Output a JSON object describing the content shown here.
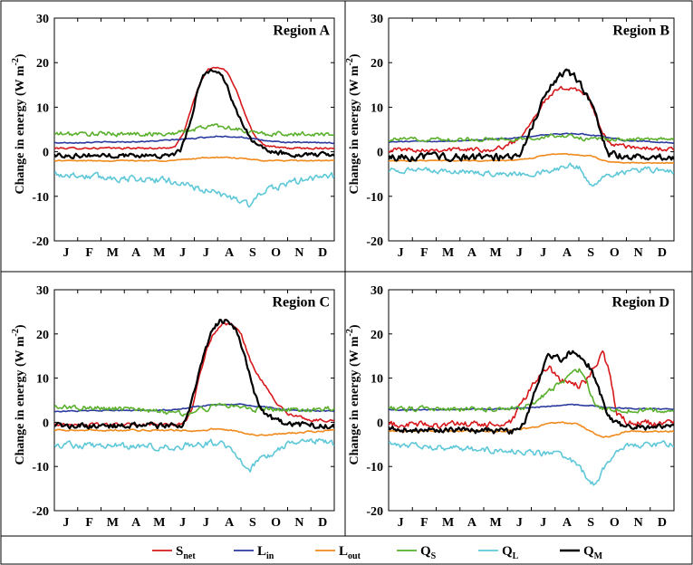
{
  "chart_data": {
    "type": "line",
    "ylabel": "Change in energy (W m",
    "ylabel_sup": "-2",
    "ylabel_close": ")",
    "months": [
      "J",
      "F",
      "M",
      "A",
      "M",
      "J",
      "J",
      "A",
      "S",
      "O",
      "N",
      "D"
    ],
    "yticks": [
      "30",
      "20",
      "10",
      "0",
      "-10",
      "-20"
    ],
    "ylim": [
      -20,
      30
    ],
    "xlim": [
      0,
      12
    ],
    "legend": [
      {
        "key": "Snet",
        "main": "S",
        "sub": "net",
        "color": "#d7191c"
      },
      {
        "key": "Lin",
        "main": "L",
        "sub": "in",
        "color": "#2b3a9e"
      },
      {
        "key": "Lout",
        "main": "L",
        "sub": "out",
        "color": "#f08a1c"
      },
      {
        "key": "QS",
        "main": "Q",
        "sub": "S",
        "color": "#5ab02c"
      },
      {
        "key": "QL",
        "main": "Q",
        "sub": "L",
        "color": "#5ec8d8"
      },
      {
        "key": "QM",
        "main": "Q",
        "sub": "M",
        "color": "#000000"
      }
    ],
    "panels": [
      {
        "title": "Region A",
        "series": {
          "Snet": {
            "x": [
              0,
              4.8,
              5.2,
              5.6,
              6.0,
              6.3,
              6.6,
              7.0,
              7.4,
              7.8,
              8.2,
              8.6,
              9.0,
              9.5,
              10,
              12
            ],
            "y": [
              0.8,
              0.8,
              1.2,
              5,
              12,
              16,
              18.5,
              19,
              18,
              14,
              8,
              3.5,
              1.5,
              1,
              0.8,
              0.8
            ],
            "noise": 0.3
          },
          "Lin": {
            "x": [
              0,
              4,
              6,
              7,
              8,
              9,
              10,
              12
            ],
            "y": [
              2,
              2.3,
              3,
              3.5,
              3.3,
              2.5,
              2.1,
              2
            ],
            "noise": 0.2
          },
          "Lout": {
            "x": [
              0,
              5,
              6.5,
              7.5,
              9,
              12
            ],
            "y": [
              -2,
              -2,
              -1.3,
              -1.3,
              -2,
              -2
            ],
            "noise": 0.2
          },
          "QS": {
            "x": [
              0,
              5,
              6,
              6.8,
              7.5,
              8.2,
              9,
              12
            ],
            "y": [
              4,
              4,
              5,
              6,
              5.5,
              4.5,
              4,
              4
            ],
            "noise": 0.8
          },
          "QL": {
            "x": [
              0,
              3,
              5,
              6,
              7,
              7.5,
              8,
              8.3,
              9,
              10,
              11,
              12
            ],
            "y": [
              -5,
              -6,
              -6.5,
              -8,
              -9.5,
              -10,
              -11,
              -12,
              -9,
              -7,
              -6,
              -5.5
            ],
            "noise": 1.2
          },
          "QM": {
            "x": [
              0,
              5,
              5.4,
              5.8,
              6.1,
              6.4,
              6.7,
              7.0,
              7.3,
              7.6,
              8.0,
              8.4,
              8.8,
              9.2,
              10,
              12
            ],
            "y": [
              -0.8,
              -0.8,
              0,
              6,
              13,
              17,
              18.5,
              18,
              16,
              12,
              7,
              3,
              1,
              0,
              -0.5,
              -0.8
            ],
            "noise": 0.8
          }
        }
      },
      {
        "title": "Region B",
        "series": {
          "Snet": {
            "x": [
              0,
              4.5,
              5,
              5.5,
              6,
              6.5,
              7,
              7.5,
              8,
              8.4,
              8.8,
              9.2,
              10,
              12
            ],
            "y": [
              0.5,
              0.5,
              1.5,
              3,
              7,
              11,
              13.5,
              14.5,
              14,
              12,
              7,
              2,
              1,
              0.5
            ],
            "noise": 0.8
          },
          "Lin": {
            "x": [
              0,
              3,
              5,
              6,
              7,
              8,
              9,
              10,
              12
            ],
            "y": [
              2.2,
              2.5,
              3,
              3.5,
              4,
              4,
              3.5,
              2.5,
              2
            ],
            "noise": 0.2
          },
          "Lout": {
            "x": [
              0,
              5,
              6,
              6.7,
              7.5,
              8.5,
              9.2,
              10,
              12
            ],
            "y": [
              -2,
              -2,
              -1.5,
              -0.6,
              -0.5,
              -1,
              -2.2,
              -2.5,
              -2.5
            ],
            "noise": 0.2
          },
          "QS": {
            "x": [
              0,
              5,
              6,
              6.8,
              7.5,
              8.2,
              9,
              12
            ],
            "y": [
              2.8,
              2.8,
              3,
              3.5,
              3.5,
              3,
              2.8,
              2.8
            ],
            "noise": 0.7
          },
          "QL": {
            "x": [
              0,
              3,
              5,
              6,
              7,
              7.5,
              8,
              8.3,
              8.6,
              9,
              10,
              11,
              12
            ],
            "y": [
              -4,
              -4.5,
              -5,
              -5,
              -4,
              -3,
              -3.5,
              -6,
              -8,
              -5.5,
              -4.5,
              -4,
              -4.5
            ],
            "noise": 0.9
          },
          "QM": {
            "x": [
              0,
              5,
              5.5,
              5.9,
              6.3,
              6.6,
              7.0,
              7.4,
              7.8,
              8.2,
              8.6,
              9.0,
              9.3,
              10,
              12
            ],
            "y": [
              -1.2,
              -1.2,
              -0.5,
              4,
              9,
              13,
              16,
              18,
              17,
              14,
              10,
              3,
              -0.5,
              -1,
              -1.2
            ],
            "noise": 1.2
          }
        }
      },
      {
        "title": "Region C",
        "series": {
          "Snet": {
            "x": [
              0,
              5.3,
              5.6,
              5.9,
              6.2,
              6.5,
              6.8,
              7.2,
              7.6,
              8.0,
              8.4,
              8.8,
              9.2,
              9.6,
              10,
              11,
              12
            ],
            "y": [
              -0.5,
              -0.5,
              0,
              3,
              10,
              16,
              20,
              22,
              22,
              20,
              14,
              10,
              7,
              4,
              2,
              0.5,
              0.5
            ],
            "noise": 0.5
          },
          "Lin": {
            "x": [
              0,
              5,
              6,
              7,
              8,
              9,
              10,
              12
            ],
            "y": [
              2.5,
              2.8,
              3.5,
              4,
              4,
              3.5,
              2.8,
              2.5
            ],
            "noise": 0.2
          },
          "Lout": {
            "x": [
              0,
              5.5,
              6.2,
              6.8,
              7.5,
              8.3,
              9,
              10,
              12
            ],
            "y": [
              -1.8,
              -1.8,
              -2,
              -1.5,
              -1.8,
              -2.5,
              -3,
              -2.5,
              -1.8
            ],
            "noise": 0.3
          },
          "QS": {
            "x": [
              0,
              3,
              5.5,
              6.5,
              7,
              7.5,
              8.5,
              12
            ],
            "y": [
              3.5,
              3,
              2,
              3,
              4,
              4,
              3,
              3
            ],
            "noise": 0.9
          },
          "QL": {
            "x": [
              0,
              3,
              5,
              6,
              7,
              7.5,
              8,
              8.4,
              9,
              10,
              11,
              12
            ],
            "y": [
              -5,
              -5.5,
              -5.5,
              -5,
              -4.5,
              -6,
              -9,
              -10.5,
              -8,
              -5,
              -4,
              -5
            ],
            "noise": 1.2
          },
          "QM": {
            "x": [
              0,
              5.3,
              5.6,
              5.9,
              6.2,
              6.5,
              6.8,
              7.1,
              7.4,
              7.8,
              8.2,
              8.6,
              9.0,
              9.5,
              10,
              12
            ],
            "y": [
              -0.8,
              -0.8,
              0,
              5,
              11,
              17,
              21,
              23,
              23,
              21,
              14,
              6,
              2,
              0.5,
              -0.5,
              -0.8
            ],
            "noise": 1.0
          }
        }
      },
      {
        "title": "Region D",
        "series": {
          "Snet": {
            "x": [
              0,
              4.8,
              5.2,
              5.6,
              6,
              6.4,
              6.8,
              7.2,
              7.6,
              8.0,
              8.4,
              8.8,
              9.0,
              9.3,
              9.6,
              10,
              12
            ],
            "y": [
              -0.5,
              -0.5,
              0,
              4,
              8,
              11,
              12,
              10,
              9,
              8,
              10,
              14,
              16,
              11,
              2,
              0,
              -0.5
            ],
            "noise": 1.2
          },
          "Lin": {
            "x": [
              0,
              5,
              6.5,
              7.5,
              8.5,
              9.5,
              12
            ],
            "y": [
              2.8,
              3,
              3.5,
              4,
              3.8,
              3.2,
              3
            ],
            "noise": 0.2
          },
          "Lout": {
            "x": [
              0,
              5,
              6,
              7,
              8,
              8.5,
              9,
              9.5,
              10,
              12
            ],
            "y": [
              -2,
              -2,
              -1.2,
              0,
              -0.5,
              -2,
              -3.5,
              -3,
              -2,
              -2
            ],
            "noise": 0.3
          },
          "QS": {
            "x": [
              0,
              5.5,
              6,
              6.5,
              7,
              7.5,
              8,
              8.3,
              8.6,
              9,
              12
            ],
            "y": [
              3,
              3,
              4,
              6,
              8,
              10,
              12,
              10,
              5,
              3,
              2.5
            ],
            "noise": 0.9
          },
          "QL": {
            "x": [
              0,
              3,
              5,
              6,
              7,
              7.5,
              8,
              8.4,
              8.7,
              9,
              9.5,
              10,
              11,
              12
            ],
            "y": [
              -5,
              -6,
              -6.5,
              -7,
              -7,
              -8,
              -10,
              -13,
              -14.5,
              -11,
              -7,
              -5.5,
              -5,
              -5
            ],
            "noise": 1.0
          },
          "QM": {
            "x": [
              0,
              5,
              5.5,
              5.8,
              6.1,
              6.4,
              6.7,
              7.0,
              7.3,
              7.6,
              8.0,
              8.4,
              8.8,
              9.2,
              9.5,
              10,
              12
            ],
            "y": [
              -1.5,
              -2,
              -2,
              1,
              6,
              11,
              15,
              15,
              14,
              16,
              15,
              13,
              8,
              2,
              0,
              -1,
              -1.2
            ],
            "noise": 1.0
          }
        }
      }
    ]
  }
}
